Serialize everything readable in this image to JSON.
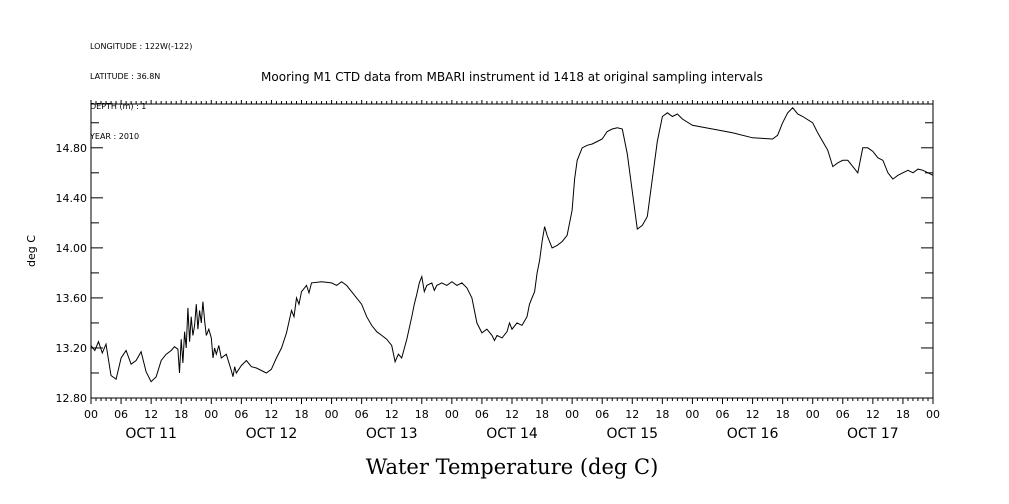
{
  "header": {
    "longitude": "LONGITUDE : 122W(-122)",
    "latitude": "LATITUDE : 36.8N",
    "depth": "DEPTH (m) : 1",
    "year": "YEAR : 2010"
  },
  "chart_data": {
    "type": "line",
    "title": "Mooring M1 CTD data from MBARI instrument id 1418 at original sampling intervals",
    "xlabel": "Water Temperature (deg C)",
    "ylabel": "deg C",
    "xlim": [
      "2010-10-11T00:00",
      "2010-10-18T00:00"
    ],
    "ylim": [
      12.8,
      15.15
    ],
    "yticks": [
      "12.80",
      "13.20",
      "13.60",
      "14.00",
      "14.40",
      "14.80"
    ],
    "xticks_hours": [
      "00",
      "06",
      "12",
      "18",
      "00",
      "06",
      "12",
      "18",
      "00",
      "06",
      "12",
      "18",
      "00",
      "06",
      "12",
      "18",
      "00",
      "06",
      "12",
      "18",
      "00",
      "06",
      "12",
      "18",
      "00",
      "06",
      "12",
      "18",
      "00"
    ],
    "day_labels": [
      "OCT 11",
      "OCT 12",
      "OCT 13",
      "OCT 14",
      "OCT 15",
      "OCT 16",
      "OCT 17"
    ],
    "grid": false,
    "series": [
      {
        "color": "#000000",
        "points": [
          [
            "2010-10-11T00:00",
            13.22
          ],
          [
            "2010-10-11T00:45",
            13.18
          ],
          [
            "2010-10-11T01:30",
            13.25
          ],
          [
            "2010-10-11T02:15",
            13.16
          ],
          [
            "2010-10-11T03:00",
            13.23
          ],
          [
            "2010-10-11T04:00",
            12.98
          ],
          [
            "2010-10-11T05:00",
            12.95
          ],
          [
            "2010-10-11T06:00",
            13.12
          ],
          [
            "2010-10-11T07:00",
            13.18
          ],
          [
            "2010-10-11T08:00",
            13.07
          ],
          [
            "2010-10-11T09:00",
            13.1
          ],
          [
            "2010-10-11T10:00",
            13.17
          ],
          [
            "2010-10-11T11:00",
            13.01
          ],
          [
            "2010-10-11T12:00",
            12.93
          ],
          [
            "2010-10-11T13:00",
            12.97
          ],
          [
            "2010-10-11T14:00",
            13.1
          ],
          [
            "2010-10-11T15:00",
            13.15
          ],
          [
            "2010-10-11T16:00",
            13.18
          ],
          [
            "2010-10-11T16:40",
            13.21
          ],
          [
            "2010-10-11T17:20",
            13.19
          ],
          [
            "2010-10-11T17:40",
            13.0
          ],
          [
            "2010-10-11T18:00",
            13.27
          ],
          [
            "2010-10-11T18:20",
            13.08
          ],
          [
            "2010-10-11T18:40",
            13.33
          ],
          [
            "2010-10-11T19:00",
            13.2
          ],
          [
            "2010-10-11T19:20",
            13.52
          ],
          [
            "2010-10-11T19:40",
            13.25
          ],
          [
            "2010-10-11T20:00",
            13.45
          ],
          [
            "2010-10-11T20:20",
            13.3
          ],
          [
            "2010-10-11T20:40",
            13.38
          ],
          [
            "2010-10-11T21:00",
            13.55
          ],
          [
            "2010-10-11T21:20",
            13.35
          ],
          [
            "2010-10-11T21:40",
            13.5
          ],
          [
            "2010-10-11T22:00",
            13.4
          ],
          [
            "2010-10-11T22:20",
            13.57
          ],
          [
            "2010-10-11T22:40",
            13.42
          ],
          [
            "2010-10-11T23:00",
            13.3
          ],
          [
            "2010-10-11T23:30",
            13.35
          ],
          [
            "2010-10-12T00:00",
            13.28
          ],
          [
            "2010-10-12T00:20",
            13.12
          ],
          [
            "2010-10-12T00:40",
            13.2
          ],
          [
            "2010-10-12T01:00",
            13.15
          ],
          [
            "2010-10-12T01:30",
            13.22
          ],
          [
            "2010-10-12T02:00",
            13.12
          ],
          [
            "2010-10-12T03:00",
            13.15
          ],
          [
            "2010-10-12T04:00",
            13.02
          ],
          [
            "2010-10-12T04:20",
            12.97
          ],
          [
            "2010-10-12T04:40",
            13.05
          ],
          [
            "2010-10-12T05:00",
            13.0
          ],
          [
            "2010-10-12T06:00",
            13.06
          ],
          [
            "2010-10-12T07:00",
            13.1
          ],
          [
            "2010-10-12T08:00",
            13.05
          ],
          [
            "2010-10-12T09:00",
            13.04
          ],
          [
            "2010-10-12T10:00",
            13.02
          ],
          [
            "2010-10-12T11:00",
            13.0
          ],
          [
            "2010-10-12T12:00",
            13.03
          ],
          [
            "2010-10-12T13:00",
            13.12
          ],
          [
            "2010-10-12T14:00",
            13.2
          ],
          [
            "2010-10-12T15:00",
            13.32
          ],
          [
            "2010-10-12T16:00",
            13.5
          ],
          [
            "2010-10-12T16:30",
            13.45
          ],
          [
            "2010-10-12T17:00",
            13.6
          ],
          [
            "2010-10-12T17:30",
            13.55
          ],
          [
            "2010-10-12T18:00",
            13.65
          ],
          [
            "2010-10-12T19:00",
            13.7
          ],
          [
            "2010-10-12T19:30",
            13.64
          ],
          [
            "2010-10-12T20:00",
            13.72
          ],
          [
            "2010-10-12T22:00",
            13.73
          ],
          [
            "2010-10-13T00:00",
            13.72
          ],
          [
            "2010-10-13T01:00",
            13.7
          ],
          [
            "2010-10-13T02:00",
            13.73
          ],
          [
            "2010-10-13T03:00",
            13.7
          ],
          [
            "2010-10-13T04:00",
            13.65
          ],
          [
            "2010-10-13T05:00",
            13.6
          ],
          [
            "2010-10-13T06:00",
            13.55
          ],
          [
            "2010-10-13T07:00",
            13.45
          ],
          [
            "2010-10-13T08:00",
            13.38
          ],
          [
            "2010-10-13T09:00",
            13.33
          ],
          [
            "2010-10-13T10:00",
            13.3
          ],
          [
            "2010-10-13T11:00",
            13.27
          ],
          [
            "2010-10-13T12:00",
            13.22
          ],
          [
            "2010-10-13T12:40",
            13.09
          ],
          [
            "2010-10-13T13:20",
            13.15
          ],
          [
            "2010-10-13T14:00",
            13.12
          ],
          [
            "2010-10-13T15:00",
            13.27
          ],
          [
            "2010-10-13T16:00",
            13.45
          ],
          [
            "2010-10-13T16:30",
            13.55
          ],
          [
            "2010-10-13T17:00",
            13.63
          ],
          [
            "2010-10-13T17:30",
            13.72
          ],
          [
            "2010-10-13T18:00",
            13.77
          ],
          [
            "2010-10-13T18:30",
            13.65
          ],
          [
            "2010-10-13T19:00",
            13.7
          ],
          [
            "2010-10-13T20:00",
            13.72
          ],
          [
            "2010-10-13T20:30",
            13.66
          ],
          [
            "2010-10-13T21:00",
            13.7
          ],
          [
            "2010-10-13T22:00",
            13.72
          ],
          [
            "2010-10-13T23:00",
            13.7
          ],
          [
            "2010-10-14T00:00",
            13.73
          ],
          [
            "2010-10-14T01:00",
            13.7
          ],
          [
            "2010-10-14T02:00",
            13.72
          ],
          [
            "2010-10-14T03:00",
            13.68
          ],
          [
            "2010-10-14T04:00",
            13.6
          ],
          [
            "2010-10-14T05:00",
            13.4
          ],
          [
            "2010-10-14T06:00",
            13.32
          ],
          [
            "2010-10-14T07:00",
            13.35
          ],
          [
            "2010-10-14T08:00",
            13.3
          ],
          [
            "2010-10-14T08:30",
            13.26
          ],
          [
            "2010-10-14T09:00",
            13.3
          ],
          [
            "2010-10-14T10:00",
            13.28
          ],
          [
            "2010-10-14T11:00",
            13.33
          ],
          [
            "2010-10-14T11:30",
            13.4
          ],
          [
            "2010-10-14T12:00",
            13.35
          ],
          [
            "2010-10-14T13:00",
            13.4
          ],
          [
            "2010-10-14T14:00",
            13.38
          ],
          [
            "2010-10-14T15:00",
            13.45
          ],
          [
            "2010-10-14T15:30",
            13.55
          ],
          [
            "2010-10-14T16:00",
            13.6
          ],
          [
            "2010-10-14T16:30",
            13.65
          ],
          [
            "2010-10-14T17:00",
            13.8
          ],
          [
            "2010-10-14T17:30",
            13.9
          ],
          [
            "2010-10-14T18:00",
            14.05
          ],
          [
            "2010-10-14T18:30",
            14.17
          ],
          [
            "2010-10-14T19:00",
            14.1
          ],
          [
            "2010-10-14T20:00",
            14.0
          ],
          [
            "2010-10-14T21:00",
            14.02
          ],
          [
            "2010-10-14T22:00",
            14.05
          ],
          [
            "2010-10-14T23:00",
            14.1
          ],
          [
            "2010-10-15T00:00",
            14.3
          ],
          [
            "2010-10-15T00:30",
            14.55
          ],
          [
            "2010-10-15T01:00",
            14.7
          ],
          [
            "2010-10-15T02:00",
            14.8
          ],
          [
            "2010-10-15T03:00",
            14.82
          ],
          [
            "2010-10-15T04:00",
            14.83
          ],
          [
            "2010-10-15T05:00",
            14.85
          ],
          [
            "2010-10-15T06:00",
            14.87
          ],
          [
            "2010-10-15T07:00",
            14.93
          ],
          [
            "2010-10-15T08:00",
            14.95
          ],
          [
            "2010-10-15T09:00",
            14.96
          ],
          [
            "2010-10-15T10:00",
            14.95
          ],
          [
            "2010-10-15T11:00",
            14.75
          ],
          [
            "2010-10-15T11:30",
            14.6
          ],
          [
            "2010-10-15T12:00",
            14.45
          ],
          [
            "2010-10-15T13:00",
            14.15
          ],
          [
            "2010-10-15T14:00",
            14.18
          ],
          [
            "2010-10-15T15:00",
            14.25
          ],
          [
            "2010-10-15T16:00",
            14.55
          ],
          [
            "2010-10-15T17:00",
            14.85
          ],
          [
            "2010-10-15T18:00",
            15.05
          ],
          [
            "2010-10-15T19:00",
            15.08
          ],
          [
            "2010-10-15T20:00",
            15.05
          ],
          [
            "2010-10-15T21:00",
            15.07
          ],
          [
            "2010-10-15T22:00",
            15.03
          ],
          [
            "2010-10-16T00:00",
            14.98
          ],
          [
            "2010-10-16T04:00",
            14.95
          ],
          [
            "2010-10-16T08:00",
            14.92
          ],
          [
            "2010-10-16T12:00",
            14.88
          ],
          [
            "2010-10-16T16:00",
            14.87
          ],
          [
            "2010-10-16T17:00",
            14.9
          ],
          [
            "2010-10-16T18:00",
            15.0
          ],
          [
            "2010-10-16T19:00",
            15.08
          ],
          [
            "2010-10-16T20:00",
            15.12
          ],
          [
            "2010-10-16T21:00",
            15.07
          ],
          [
            "2010-10-16T22:00",
            15.05
          ],
          [
            "2010-10-17T00:00",
            15.0
          ],
          [
            "2010-10-17T01:00",
            14.92
          ],
          [
            "2010-10-17T02:00",
            14.85
          ],
          [
            "2010-10-17T03:00",
            14.78
          ],
          [
            "2010-10-17T04:00",
            14.65
          ],
          [
            "2010-10-17T05:00",
            14.68
          ],
          [
            "2010-10-17T06:00",
            14.7
          ],
          [
            "2010-10-17T07:00",
            14.7
          ],
          [
            "2010-10-17T08:00",
            14.65
          ],
          [
            "2010-10-17T09:00",
            14.6
          ],
          [
            "2010-10-17T10:00",
            14.8
          ],
          [
            "2010-10-17T11:00",
            14.8
          ],
          [
            "2010-10-17T12:00",
            14.77
          ],
          [
            "2010-10-17T13:00",
            14.72
          ],
          [
            "2010-10-17T14:00",
            14.7
          ],
          [
            "2010-10-17T15:00",
            14.6
          ],
          [
            "2010-10-17T16:00",
            14.55
          ],
          [
            "2010-10-17T17:00",
            14.58
          ],
          [
            "2010-10-17T18:00",
            14.6
          ],
          [
            "2010-10-17T19:00",
            14.62
          ],
          [
            "2010-10-17T20:00",
            14.6
          ],
          [
            "2010-10-17T21:00",
            14.63
          ],
          [
            "2010-10-17T22:00",
            14.62
          ],
          [
            "2010-10-17T23:00",
            14.6
          ],
          [
            "2010-10-18T00:00",
            14.58
          ]
        ]
      }
    ]
  }
}
